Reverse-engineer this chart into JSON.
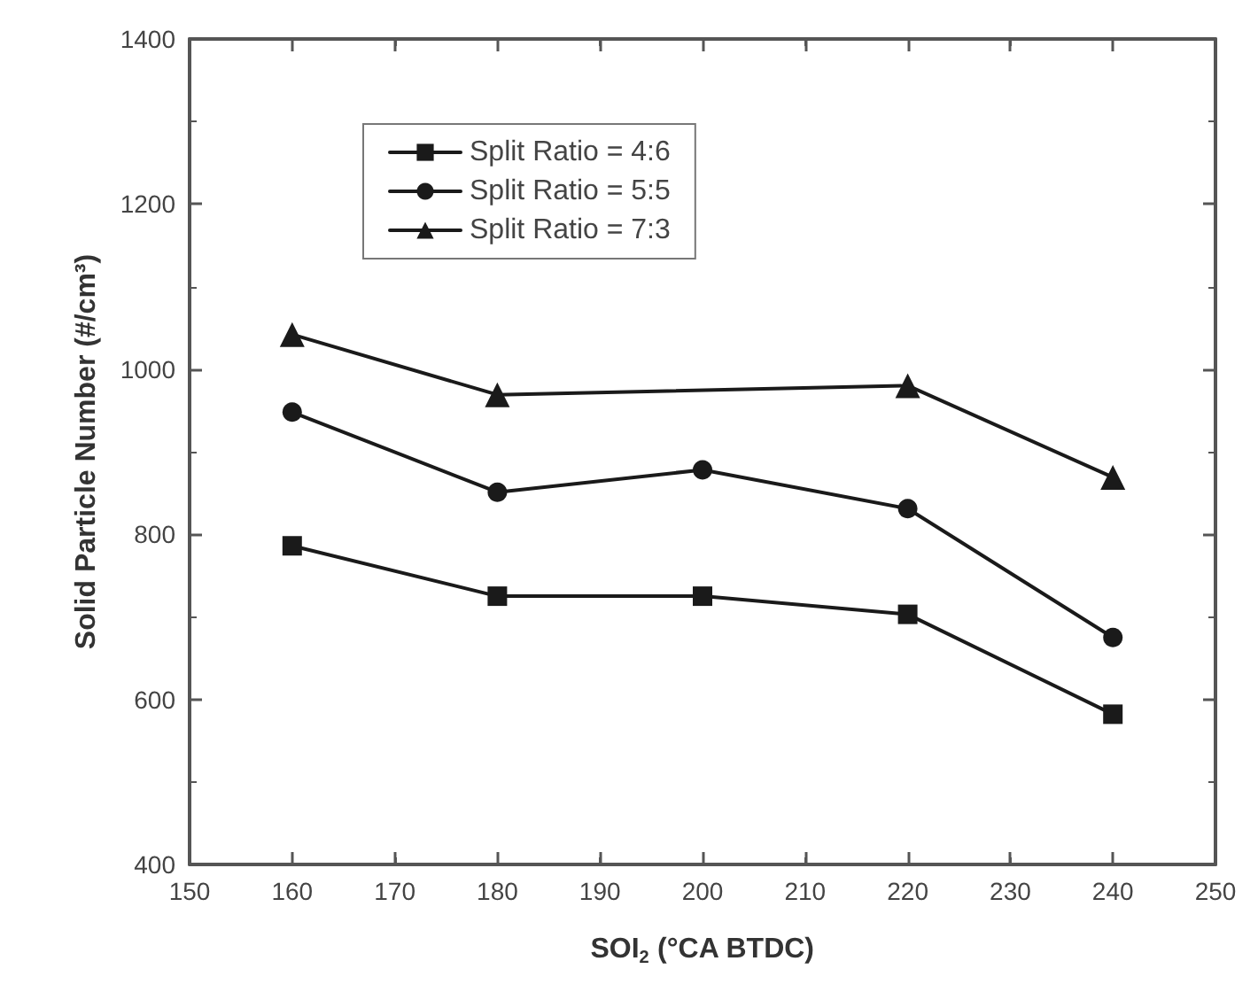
{
  "chart_data": {
    "type": "line",
    "xlabel": "SOI$_{2}$ (°CA BTDC)",
    "ylabel": "Solid Particle Number (#/cm³)",
    "x": [
      160,
      180,
      200,
      220,
      240
    ],
    "series": [
      {
        "name": "Split Ratio = 4:6",
        "color": "#1a1a1a",
        "marker": "square",
        "values": [
          786,
          725,
          725,
          703,
          582
        ]
      },
      {
        "name": "Split Ratio = 5:5",
        "color": "#1a1a1a",
        "marker": "circle",
        "values": [
          948,
          851,
          878,
          831,
          675
        ]
      },
      {
        "name": "Split Ratio = 7:3",
        "color": "#1a1a1a",
        "marker": "triangle",
        "values": [
          1042,
          969,
          null,
          980,
          869
        ]
      }
    ],
    "xlim": [
      150,
      250
    ],
    "xticks": [
      150,
      160,
      170,
      180,
      190,
      200,
      210,
      220,
      230,
      240,
      250
    ],
    "ylim": [
      400,
      1400
    ],
    "yticks": [
      400,
      600,
      800,
      1000,
      1200,
      1400
    ],
    "grid": false,
    "legend": "top left",
    "line_style": "solid"
  }
}
